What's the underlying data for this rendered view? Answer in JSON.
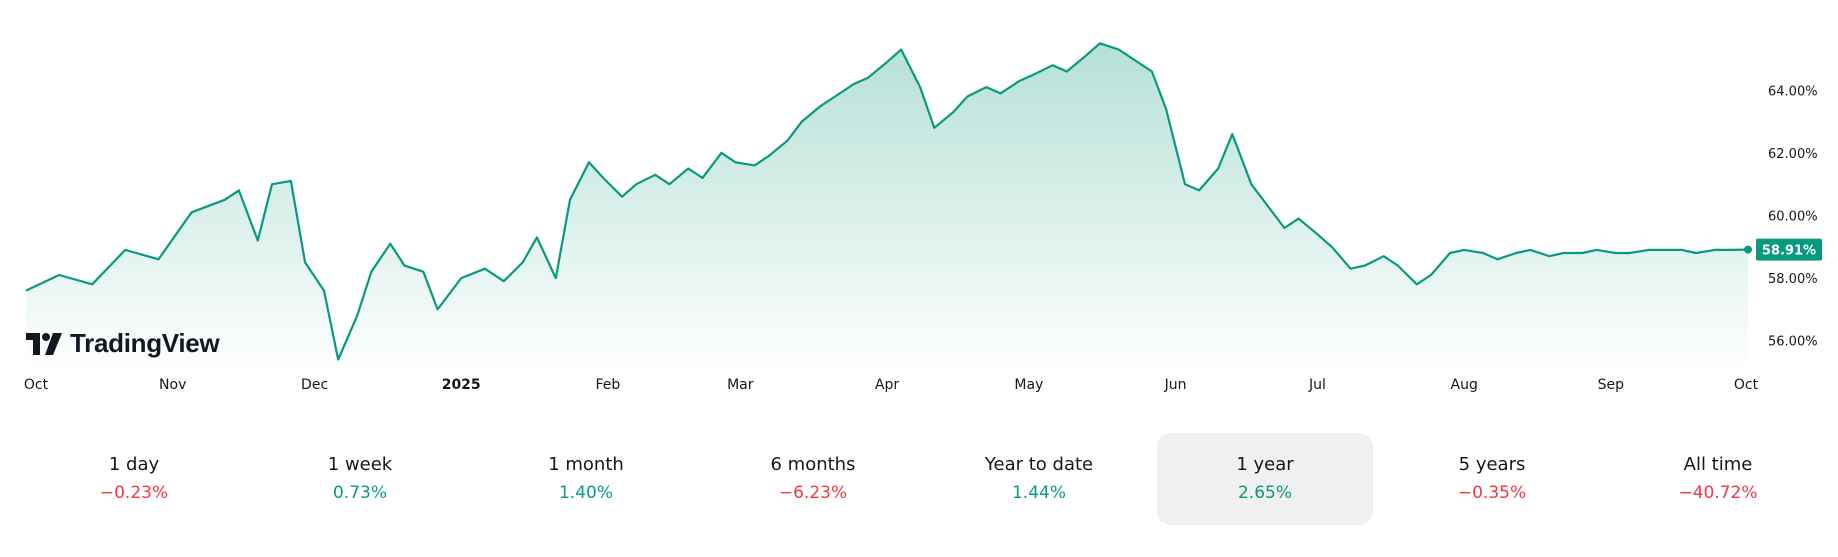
{
  "chart_data": {
    "type": "area",
    "x": [
      "2024-10-01",
      "2024-10-08",
      "2024-10-15",
      "2024-10-22",
      "2024-10-29",
      "2024-11-05",
      "2024-11-12",
      "2024-11-15",
      "2024-11-19",
      "2024-11-22",
      "2024-11-26",
      "2024-11-29",
      "2024-12-03",
      "2024-12-06",
      "2024-12-10",
      "2024-12-13",
      "2024-12-17",
      "2024-12-20",
      "2024-12-24",
      "2024-12-27",
      "2025-01-01",
      "2025-01-06",
      "2025-01-10",
      "2025-01-14",
      "2025-01-17",
      "2025-01-21",
      "2025-01-24",
      "2025-01-28",
      "2025-01-31",
      "2025-02-04",
      "2025-02-07",
      "2025-02-11",
      "2025-02-14",
      "2025-02-18",
      "2025-02-21",
      "2025-02-25",
      "2025-02-28",
      "2025-03-04",
      "2025-03-07",
      "2025-03-11",
      "2025-03-14",
      "2025-03-18",
      "2025-03-21",
      "2025-03-25",
      "2025-03-28",
      "2025-04-01",
      "2025-04-04",
      "2025-04-08",
      "2025-04-11",
      "2025-04-15",
      "2025-04-18",
      "2025-04-22",
      "2025-04-25",
      "2025-04-29",
      "2025-05-02",
      "2025-05-06",
      "2025-05-09",
      "2025-05-13",
      "2025-05-16",
      "2025-05-20",
      "2025-05-23",
      "2025-05-27",
      "2025-05-30",
      "2025-06-03",
      "2025-06-06",
      "2025-06-10",
      "2025-06-13",
      "2025-06-17",
      "2025-06-20",
      "2025-06-24",
      "2025-06-27",
      "2025-07-01",
      "2025-07-04",
      "2025-07-08",
      "2025-07-11",
      "2025-07-15",
      "2025-07-18",
      "2025-07-22",
      "2025-07-25",
      "2025-07-29",
      "2025-08-01",
      "2025-08-05",
      "2025-08-08",
      "2025-08-12",
      "2025-08-15",
      "2025-08-19",
      "2025-08-22",
      "2025-08-26",
      "2025-08-29",
      "2025-09-02",
      "2025-09-05",
      "2025-09-09",
      "2025-09-12",
      "2025-09-16",
      "2025-09-19",
      "2025-09-23",
      "2025-09-26",
      "2025-09-30"
    ],
    "y": [
      57.6,
      58.1,
      57.8,
      58.9,
      58.6,
      60.1,
      60.5,
      60.8,
      59.2,
      61.0,
      61.1,
      58.5,
      57.6,
      55.4,
      56.8,
      58.2,
      59.1,
      58.4,
      58.2,
      57.0,
      58.0,
      58.3,
      57.9,
      58.5,
      59.3,
      58.0,
      60.5,
      61.7,
      61.2,
      60.6,
      61.0,
      61.3,
      61.0,
      61.5,
      61.2,
      62.0,
      61.7,
      61.6,
      61.9,
      62.4,
      63.0,
      63.5,
      63.8,
      64.2,
      64.4,
      64.9,
      65.3,
      64.1,
      62.8,
      63.3,
      63.8,
      64.1,
      63.9,
      64.3,
      64.5,
      64.8,
      64.6,
      65.1,
      65.5,
      65.3,
      65.0,
      64.6,
      63.4,
      61.0,
      60.8,
      61.5,
      62.6,
      61.0,
      60.4,
      59.6,
      59.9,
      59.4,
      59.0,
      58.3,
      58.4,
      58.7,
      58.4,
      57.8,
      58.1,
      58.8,
      58.9,
      58.8,
      58.6,
      58.8,
      58.9,
      58.7,
      58.8,
      58.8,
      58.9,
      58.8,
      58.8,
      58.9,
      58.9,
      58.9,
      58.8,
      58.9,
      58.9,
      58.91
    ],
    "title": "",
    "xlabel": "",
    "ylabel": "",
    "x_ticks": [
      "Oct",
      "Nov",
      "Dec",
      "2025",
      "Feb",
      "Mar",
      "Apr",
      "May",
      "Jun",
      "Jul",
      "Aug",
      "Sep",
      "Oct"
    ],
    "y_ticks": [
      "56.00%",
      "58.00%",
      "60.00%",
      "62.00%",
      "64.00%"
    ],
    "ylim": [
      55,
      66.5
    ],
    "y_scale": "linear",
    "grid": false,
    "legend": "none",
    "last_value_label": "58.91%"
  },
  "colors": {
    "line": "#089981",
    "fill_top": "#b2dfd4",
    "fill_bottom": "#ffffff",
    "positive": "#089981",
    "negative": "#f23645",
    "last_value_bg": "#089981",
    "active_period_bg": "#f0f0f0"
  },
  "brand": {
    "name": "TradingView",
    "icon": "tradingview-logo-icon"
  },
  "periods": [
    {
      "label": "1 day",
      "value": "−0.23%",
      "sign": "negative"
    },
    {
      "label": "1 week",
      "value": "0.73%",
      "sign": "positive"
    },
    {
      "label": "1 month",
      "value": "1.40%",
      "sign": "positive"
    },
    {
      "label": "6 months",
      "value": "−6.23%",
      "sign": "negative"
    },
    {
      "label": "Year to date",
      "value": "1.44%",
      "sign": "positive"
    },
    {
      "label": "1 year",
      "value": "2.65%",
      "sign": "positive",
      "active": true
    },
    {
      "label": "5 years",
      "value": "−0.35%",
      "sign": "negative"
    },
    {
      "label": "All time",
      "value": "−40.72%",
      "sign": "negative"
    }
  ]
}
